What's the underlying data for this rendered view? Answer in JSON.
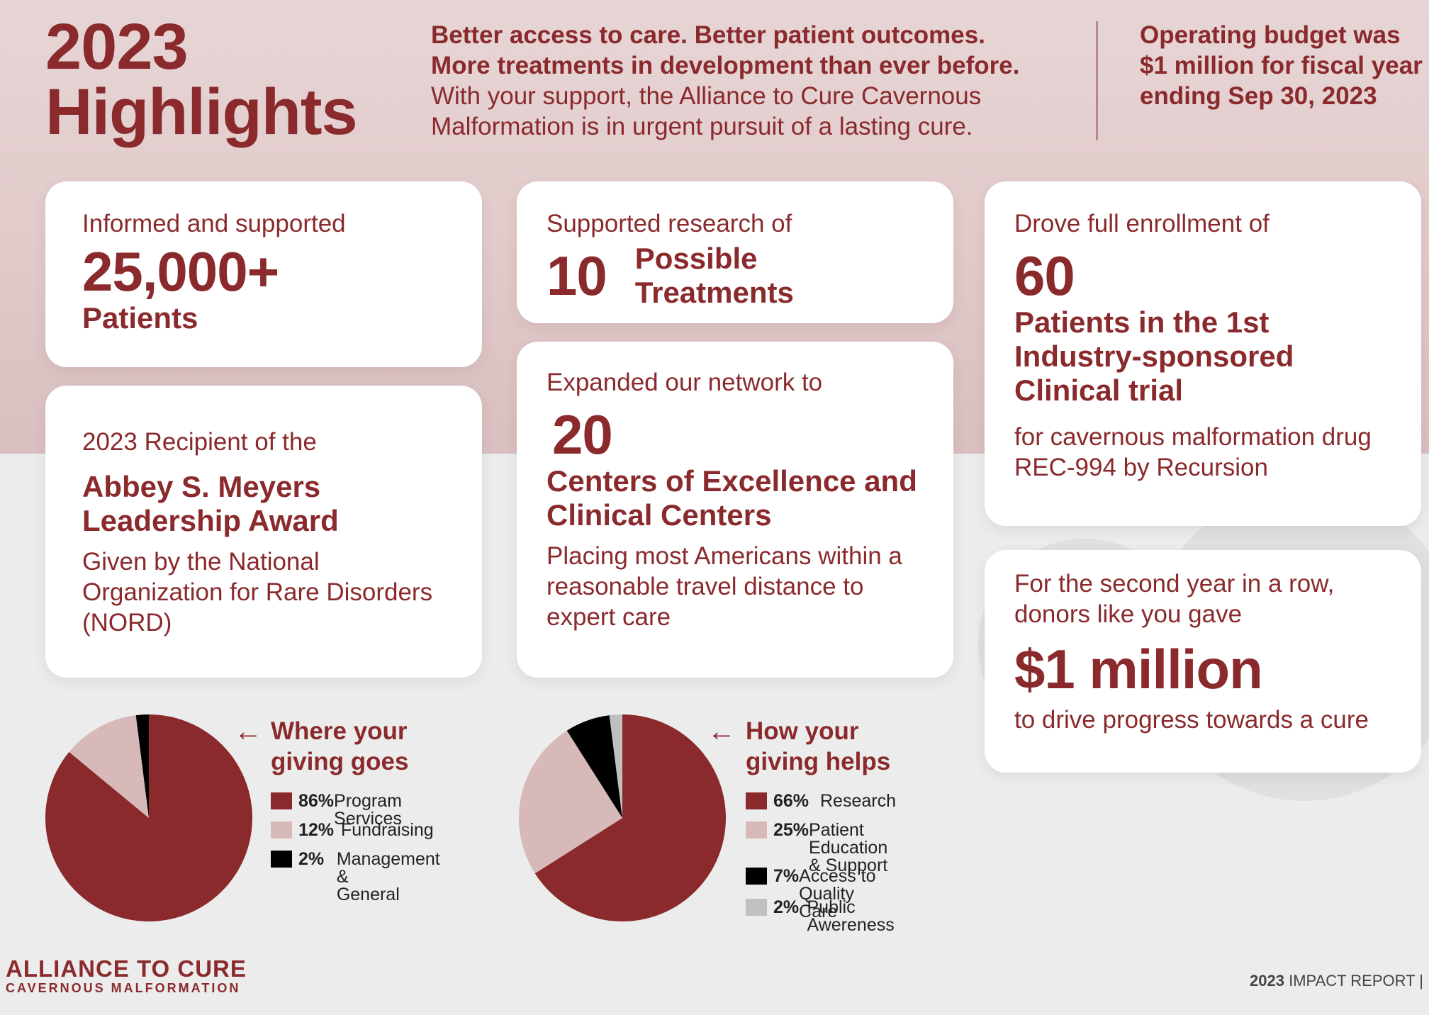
{
  "header": {
    "title_line1": "2023",
    "title_line2": "Highlights",
    "intro_bold1": "Better access to care. Better patient outcomes.",
    "intro_bold2": "More treatments in development than ever before.",
    "intro_text": "With your support, the Alliance to Cure Cavernous Malformation is in urgent pursuit of a lasting cure.",
    "budget": "Operating budget was $1 million for fiscal year ending Sep 30, 2023"
  },
  "cards": {
    "patients": {
      "lead": "Informed and supported",
      "number": "25,000+",
      "label": "Patients"
    },
    "treatments": {
      "lead": "Supported research of",
      "number": "10",
      "label": "Possible Treatments"
    },
    "enrollment": {
      "lead": "Drove full enrollment of",
      "number": "60",
      "label": "Patients in the 1st Industry-sponsored Clinical trial",
      "detail": "for cavernous malformation drug REC-994 by Recursion"
    },
    "award": {
      "lead": "2023 Recipient of the",
      "name": "Abbey S. Meyers Leadership Award",
      "detail": "Given by the National Organization for Rare Disorders (NORD)"
    },
    "network": {
      "lead": "Expanded our network to",
      "number": "20",
      "label": "Centers of Excellence and Clinical Centers",
      "detail": "Placing most Americans within a reasonable travel distance to expert care"
    },
    "donors": {
      "lead": "For the second year in a row, donors like you gave",
      "amount": "$1 million",
      "detail": "to drive progress towards a cure"
    }
  },
  "chart_data": [
    {
      "type": "pie",
      "title": "Where your giving goes",
      "slices": [
        {
          "label": "Program Services",
          "value": 86,
          "value_label": "86%",
          "color": "#8a2a2c"
        },
        {
          "label": "Fundraising",
          "value": 12,
          "value_label": "12%",
          "color": "#d8b9b9"
        },
        {
          "label": "Management &\nGeneral",
          "value": 2,
          "value_label": "2%",
          "color": "#000000"
        }
      ]
    },
    {
      "type": "pie",
      "title": "How your giving helps",
      "slices": [
        {
          "label": "Research",
          "value": 66,
          "value_label": "66%",
          "color": "#8a2a2c"
        },
        {
          "label": "Patient Education\n& Support",
          "value": 25,
          "value_label": "25%",
          "color": "#d8b9b9"
        },
        {
          "label": "Access to Quality Care",
          "value": 7,
          "value_label": "7%",
          "color": "#000000"
        },
        {
          "label": "Public Awereness",
          "value": 2,
          "value_label": "2%",
          "color": "#c0c0c0"
        }
      ]
    }
  ],
  "arrow_glyph": "←",
  "logo": {
    "line1": "ALLIANCE TO CURE",
    "line2": "CAVERNOUS MALFORMATION"
  },
  "footer": {
    "year": "2023",
    "text": " IMPACT REPORT |"
  }
}
